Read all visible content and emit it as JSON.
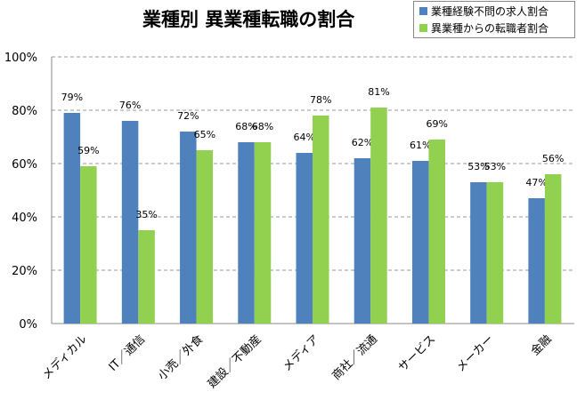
{
  "chart_data": {
    "type": "bar",
    "title": "業種別 異業種転職の割合",
    "categories": [
      "メディカル",
      "IT／通信",
      "小売／外食",
      "建設／不動産",
      "メディア",
      "商社／流通",
      "サービス",
      "メーカー",
      "金融"
    ],
    "series": [
      {
        "name": "業種経験不問の求人割合",
        "color": "#4f81bd",
        "values": [
          79,
          76,
          72,
          68,
          64,
          62,
          61,
          53,
          47
        ]
      },
      {
        "name": "異業種からの転職者割合",
        "color": "#92d050",
        "values": [
          59,
          35,
          65,
          68,
          78,
          81,
          69,
          53,
          56
        ]
      }
    ],
    "ylim": [
      0,
      100
    ],
    "yticks": [
      "0%",
      "20%",
      "40%",
      "60%",
      "80%",
      "100%"
    ],
    "value_suffix": "%",
    "grid": true,
    "legend": "top-right"
  }
}
